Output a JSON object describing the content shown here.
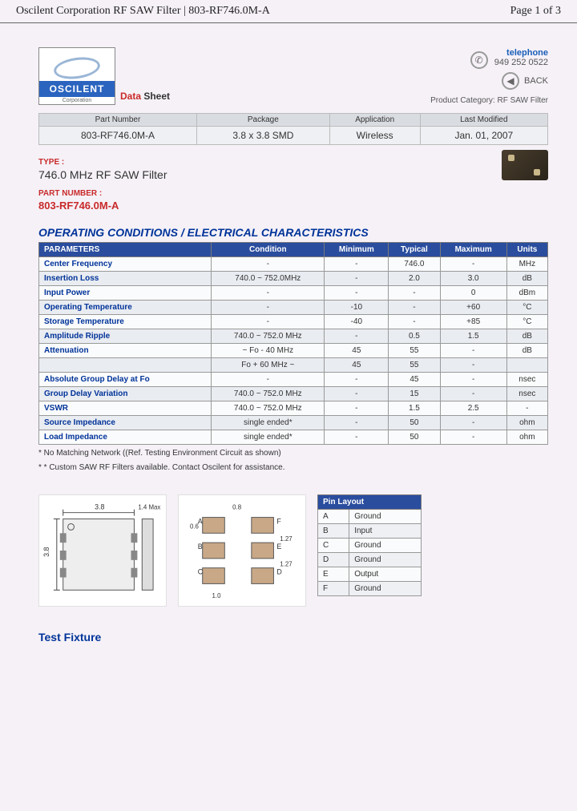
{
  "page_header": {
    "title": "Oscilent Corporation RF SAW Filter | 803-RF746.0M-A",
    "page_info": "Page 1 of 3"
  },
  "logo": {
    "brand": "OSCILENT",
    "sub": "Corporation"
  },
  "datasheet_label": {
    "data": "Data ",
    "sheet": "Sheet"
  },
  "contact": {
    "telephone_label": "telephone",
    "phone": "949 252 0522",
    "back": "BACK",
    "category_label": "Product Category:",
    "category": "RF SAW Filter"
  },
  "info_table": {
    "headers": [
      "Part Number",
      "Package",
      "Application",
      "Last Modified"
    ],
    "row": [
      "803-RF746.0M-A",
      "3.8 x 3.8 SMD",
      "Wireless",
      "Jan. 01, 2007"
    ]
  },
  "type_label": "TYPE :",
  "type_value": "746.0 MHz RF SAW Filter",
  "pn_label": "PART NUMBER :",
  "pn_value": "803-RF746.0M-A",
  "section_title": "OPERATING CONDITIONS / ELECTRICAL CHARACTERISTICS",
  "spec_table": {
    "headers": [
      "PARAMETERS",
      "Condition",
      "Minimum",
      "Typical",
      "Maximum",
      "Units"
    ],
    "rows": [
      [
        "Center Frequency",
        "-",
        "-",
        "746.0",
        "-",
        "MHz"
      ],
      [
        "Insertion Loss",
        "740.0 ~ 752.0MHz",
        "-",
        "2.0",
        "3.0",
        "dB"
      ],
      [
        "Input Power",
        "-",
        "-",
        "-",
        "0",
        "dBm"
      ],
      [
        "Operating Temperature",
        "-",
        "-10",
        "-",
        "+60",
        "°C"
      ],
      [
        "Storage Temperature",
        "-",
        "-40",
        "-",
        "+85",
        "°C"
      ],
      [
        "Amplitude Ripple",
        "740.0 ~ 752.0 MHz",
        "-",
        "0.5",
        "1.5",
        "dB"
      ],
      [
        "Attenuation",
        "~ Fo - 40 MHz",
        "45",
        "55",
        "-",
        "dB"
      ],
      [
        "",
        "Fo + 60 MHz ~",
        "45",
        "55",
        "-",
        ""
      ],
      [
        "Absolute Group Delay at Fo",
        "-",
        "-",
        "45",
        "-",
        "nsec"
      ],
      [
        "Group Delay Variation",
        "740.0 ~ 752.0 MHz",
        "-",
        "15",
        "-",
        "nsec"
      ],
      [
        "VSWR",
        "740.0 ~ 752.0 MHz",
        "-",
        "1.5",
        "2.5",
        "-"
      ],
      [
        "Source Impedance",
        "single ended*",
        "-",
        "50",
        "-",
        "ohm"
      ],
      [
        "Load Impedance",
        "single ended*",
        "-",
        "50",
        "-",
        "ohm"
      ]
    ]
  },
  "footnotes": [
    "* No Matching Network ((Ref. Testing Environment Circuit as shown)",
    "* * Custom SAW RF Filters available. Contact Oscilent for assistance."
  ],
  "pkg_dims": {
    "w": "3.8",
    "h": "3.8",
    "t": "1.4 Max",
    "pad_w": "0.8",
    "pad_h": "0.6",
    "gap": "1.27",
    "edge": "1.0"
  },
  "pin_table": {
    "header": "Pin Layout",
    "rows": [
      [
        "A",
        "Ground"
      ],
      [
        "B",
        "Input"
      ],
      [
        "C",
        "Ground"
      ],
      [
        "D",
        "Ground"
      ],
      [
        "E",
        "Output"
      ],
      [
        "F",
        "Ground"
      ]
    ]
  },
  "test_fixture": "Test Fixture",
  "colors": {
    "header_blue": "#2a4d9e",
    "link_blue": "#003399",
    "red": "#c92a2a",
    "row_alt": "#e9ecf1"
  }
}
